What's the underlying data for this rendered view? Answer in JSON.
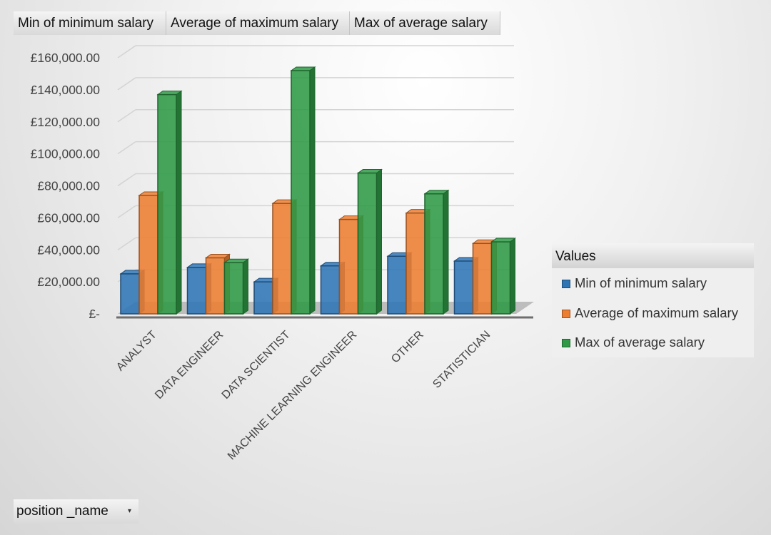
{
  "field_buttons": [
    "Min of minimum salary",
    "Average of maximum salary",
    "Max of average salary"
  ],
  "axis_field": {
    "label": "position _name",
    "arrow": "▾"
  },
  "legend": {
    "title": "Values",
    "items": [
      {
        "label": "Min of minimum salary",
        "color": "#2e75b6"
      },
      {
        "label": "Average of maximum salary",
        "color": "#ed7d31"
      },
      {
        "label": "Max of average salary",
        "color": "#2e9a45"
      }
    ]
  },
  "chart_data": {
    "type": "bar",
    "categories": [
      "ANALYST",
      "DATA ENGINEER",
      "DATA SCIENTIST",
      "MACHINE LEARNING ENGINEER",
      "OTHER",
      "STATISTICIAN"
    ],
    "series": [
      {
        "name": "Min of minimum salary",
        "values": [
          25000,
          29000,
          20000,
          30000,
          36000,
          33000
        ]
      },
      {
        "name": "Average of maximum salary",
        "values": [
          74000,
          35000,
          69000,
          59000,
          63000,
          44000
        ]
      },
      {
        "name": "Max of average salary",
        "values": [
          137000,
          32000,
          152000,
          88000,
          75000,
          45000
        ]
      }
    ],
    "y_ticks": [
      "£-",
      "£20,000.00",
      "£40,000.00",
      "£60,000.00",
      "£80,000.00",
      "£100,000.00",
      "£120,000.00",
      "£140,000.00",
      "£160,000.00"
    ],
    "ylim": [
      0,
      160000
    ],
    "grid": true,
    "legend_position": "right",
    "style": "3d-clustered-column",
    "colors": [
      "#2e75b6",
      "#ed7d31",
      "#2e9a45"
    ]
  }
}
